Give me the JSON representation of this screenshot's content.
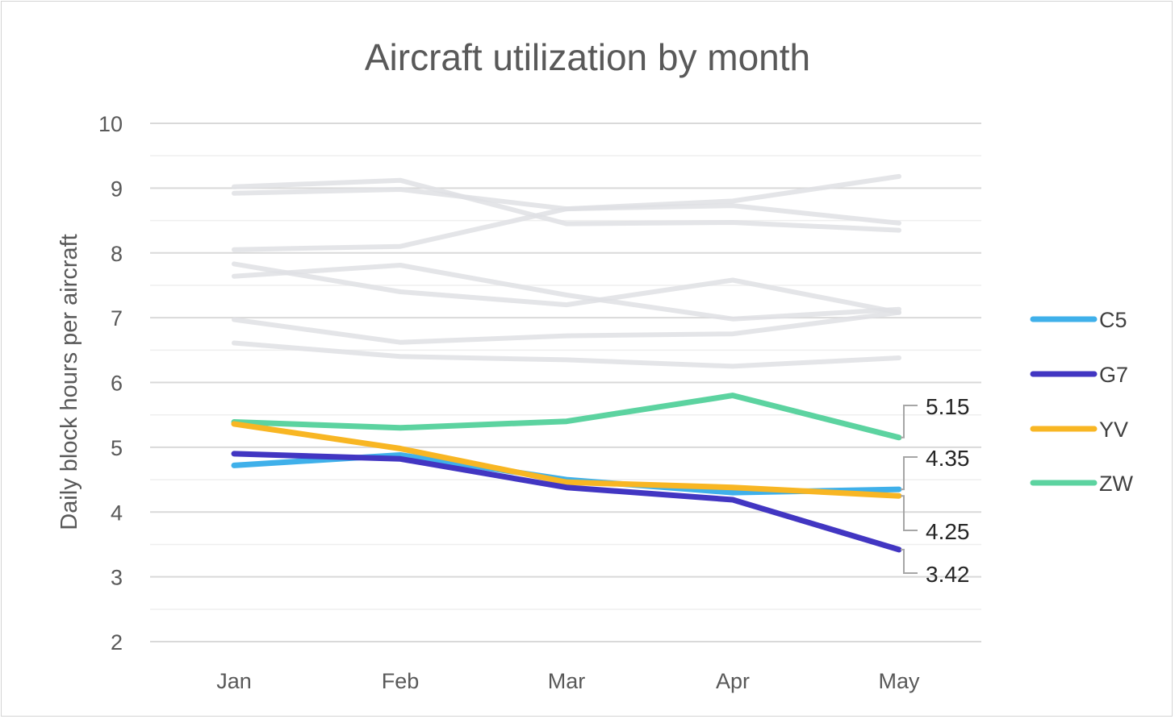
{
  "chart_data": {
    "type": "line",
    "title": "Aircraft utilization by month",
    "xlabel": "",
    "ylabel": "Daily block hours per aircraft",
    "categories": [
      "Jan",
      "Feb",
      "Mar",
      "Apr",
      "May"
    ],
    "ylim": [
      2,
      10
    ],
    "yticks": [
      2,
      3,
      4,
      5,
      6,
      7,
      8,
      9,
      10
    ],
    "grid": true,
    "legend_position": "right",
    "background_series": [
      {
        "values": [
          9.02,
          9.12,
          8.45,
          8.47,
          8.35
        ],
        "color": "#dfe1e4"
      },
      {
        "values": [
          8.92,
          8.98,
          8.68,
          8.8,
          9.18
        ],
        "color": "#dfe1e4"
      },
      {
        "values": [
          8.05,
          8.1,
          8.68,
          8.73,
          8.46
        ],
        "color": "#dfe1e4"
      },
      {
        "values": [
          7.83,
          7.4,
          7.2,
          7.58,
          7.08
        ],
        "color": "#dfe1e4"
      },
      {
        "values": [
          7.64,
          7.81,
          7.35,
          6.98,
          7.13
        ],
        "color": "#dfe1e4"
      },
      {
        "values": [
          6.97,
          6.62,
          6.72,
          6.75,
          7.08
        ],
        "color": "#dfe1e4"
      },
      {
        "values": [
          6.61,
          6.4,
          6.35,
          6.25,
          6.38
        ],
        "color": "#dfe1e4"
      }
    ],
    "series": [
      {
        "name": "ZW",
        "values": [
          5.39,
          5.3,
          5.4,
          5.8,
          5.15
        ],
        "color": "#5cd3a0",
        "end_label": "5.15"
      },
      {
        "name": "C5",
        "values": [
          4.72,
          4.88,
          4.5,
          4.3,
          4.35
        ],
        "color": "#3fb0ea",
        "end_label": "4.35"
      },
      {
        "name": "YV",
        "values": [
          5.36,
          4.98,
          4.46,
          4.38,
          4.25
        ],
        "color": "#f8b623",
        "end_label": "4.25"
      },
      {
        "name": "G7",
        "values": [
          4.9,
          4.82,
          4.38,
          4.19,
          3.42
        ],
        "color": "#4236c2",
        "end_label": "3.42"
      }
    ],
    "legend": [
      "C5",
      "G7",
      "YV",
      "ZW"
    ]
  }
}
